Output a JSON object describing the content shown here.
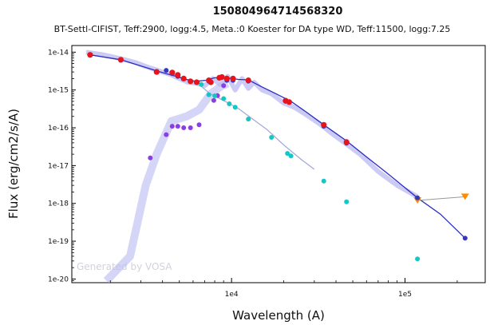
{
  "chart_data": {
    "type": "scatter",
    "title": "150804964714568320",
    "subtitle": "BT-Settl-CIFIST, Teff:2900, logg:4.5, Meta.:0 Koester for DA type WD, Teff:11500, logg:7.25",
    "xlabel": "Wavelength (A)",
    "ylabel": "Flux (erg/cm2/s/A)",
    "xscale": "log",
    "yscale": "log",
    "xlim": [
      1200,
      290000
    ],
    "ylim": [
      8e-21,
      1.5e-14
    ],
    "x_ticks": [
      {
        "value": 10000,
        "label": "1e4"
      },
      {
        "value": 100000,
        "label": "1e5"
      }
    ],
    "y_ticks": [
      {
        "value": 1e-14,
        "label": "1e-14"
      },
      {
        "value": 1e-15,
        "label": "1e-15"
      },
      {
        "value": 1e-16,
        "label": "1e-16"
      },
      {
        "value": 1e-17,
        "label": "1e-17"
      },
      {
        "value": 1e-18,
        "label": "1e-18"
      },
      {
        "value": 1e-19,
        "label": "1e-19"
      },
      {
        "value": 1e-20,
        "label": "1e-20"
      }
    ],
    "watermark": "Generated by VOSA",
    "grid": false,
    "colors": {
      "combined_model": "#2b2bbf",
      "spectrum": "#b9baf2",
      "wd_model": "#9fa6d6",
      "observed": "#e8141c",
      "total_model_points": "#3535c0",
      "cool_component": "#8a3fe0",
      "wd_component": "#16c6c6",
      "upper_limits": "#ff8c00"
    },
    "series": [
      {
        "role": "combined_model",
        "x": [
          1530,
          2300,
          3700,
          4200,
          4800,
          5500,
          6200,
          7100,
          8000,
          9000,
          10000,
          11000,
          12500,
          15000,
          18000,
          22000,
          27000,
          34000,
          46000,
          60000,
          80000,
          118000,
          160000,
          222000
        ],
        "y": [
          8.5e-15,
          6.3e-15,
          3.2e-15,
          2.7e-15,
          2.3e-15,
          1.9e-15,
          1.7e-15,
          1.8e-15,
          2.1e-15,
          2.1e-15,
          2e-15,
          1.9e-15,
          1.85e-15,
          1.2e-15,
          8e-16,
          5e-16,
          2.6e-16,
          1.2e-16,
          4.5e-17,
          1.7e-17,
          6e-18,
          1.4e-18,
          5.2e-19,
          1.2e-19
        ]
      },
      {
        "role": "spectrum",
        "x": [
          1450,
          1600,
          1800,
          2100,
          2400,
          2800,
          3200,
          3600,
          4000,
          4500,
          5000,
          5600,
          6300,
          7000,
          7800,
          8600,
          9500,
          10500,
          11500,
          12500,
          13500,
          15000,
          17000,
          20000,
          23000,
          27000,
          32000,
          38000,
          45000,
          55000,
          70000,
          90000,
          118000
        ],
        "y": [
          1e-14,
          9.3e-15,
          8.6e-15,
          7.4e-15,
          6.4e-15,
          5.3e-15,
          4.2e-15,
          3.5e-15,
          3e-15,
          2.5e-15,
          2e-15,
          1.6e-15,
          1.5e-15,
          1.3e-15,
          2e-15,
          1.4e-15,
          2.3e-15,
          1e-15,
          2e-15,
          1.1e-15,
          1.6e-15,
          1e-15,
          8e-16,
          4.5e-16,
          3.5e-16,
          2.2e-16,
          1.3e-16,
          7e-17,
          4e-17,
          2e-17,
          7e-18,
          3e-18,
          1.5e-18
        ]
      },
      {
        "role": "wd_model",
        "x": [
          6500,
          7500,
          8500,
          9500,
          11000,
          13000,
          16000,
          20000,
          25000,
          30000
        ],
        "y": [
          1.4e-15,
          8e-16,
          6e-16,
          4.6e-16,
          3.2e-16,
          1.8e-16,
          9e-17,
          3.5e-17,
          1.5e-17,
          8e-18
        ]
      },
      {
        "role": "observed",
        "x": [
          1530,
          2300,
          3700,
          4550,
          4900,
          5300,
          5800,
          6300,
          7400,
          7600,
          8500,
          8800,
          9400,
          10200,
          12500,
          20500,
          21500,
          34000,
          46000
        ],
        "y": [
          8.5e-15,
          6.3e-15,
          3e-15,
          2.9e-15,
          2.5e-15,
          2e-15,
          1.7e-15,
          1.6e-15,
          1.8e-15,
          1.6e-15,
          2.1e-15,
          2.2e-15,
          2e-15,
          2e-15,
          1.8e-15,
          5.2e-16,
          4.8e-16,
          1.2e-16,
          4.2e-17
        ]
      },
      {
        "role": "total_model_points",
        "x": [
          1530,
          2300,
          3700,
          4200,
          4550,
          4900,
          7400,
          9400,
          10200,
          12500,
          20500,
          34000,
          46000,
          118000,
          222000
        ],
        "y": [
          8.3e-15,
          6.1e-15,
          3.1e-15,
          3.3e-15,
          2.7e-15,
          2.3e-15,
          1.7e-15,
          1.8e-15,
          1.8e-15,
          1.7e-15,
          5e-16,
          1.1e-16,
          3.9e-17,
          1.4e-18,
          1.2e-19
        ]
      },
      {
        "role": "cool_component",
        "x": [
          3400,
          4200,
          4550,
          4900,
          5300,
          5800,
          6500,
          7900,
          8300,
          9000
        ],
        "y": [
          1.6e-17,
          6.6e-17,
          1.1e-16,
          1.1e-16,
          1e-16,
          1e-16,
          1.2e-16,
          5.3e-16,
          7.1e-16,
          1.3e-15
        ]
      },
      {
        "role": "wd_component",
        "x": [
          6700,
          7400,
          8000,
          9000,
          9700,
          10500,
          12500,
          17000,
          21000,
          22000,
          34000,
          46000,
          118000
        ],
        "y": [
          1.4e-15,
          7.5e-16,
          7e-16,
          5.9e-16,
          4.3e-16,
          3.5e-16,
          1.7e-16,
          5.6e-17,
          2.1e-17,
          1.8e-17,
          3.9e-18,
          1.1e-18,
          3.4e-20
        ]
      },
      {
        "role": "upper_limits",
        "x": [
          118000,
          222000
        ],
        "y": [
          1.2e-18,
          1.5e-18
        ]
      }
    ]
  }
}
